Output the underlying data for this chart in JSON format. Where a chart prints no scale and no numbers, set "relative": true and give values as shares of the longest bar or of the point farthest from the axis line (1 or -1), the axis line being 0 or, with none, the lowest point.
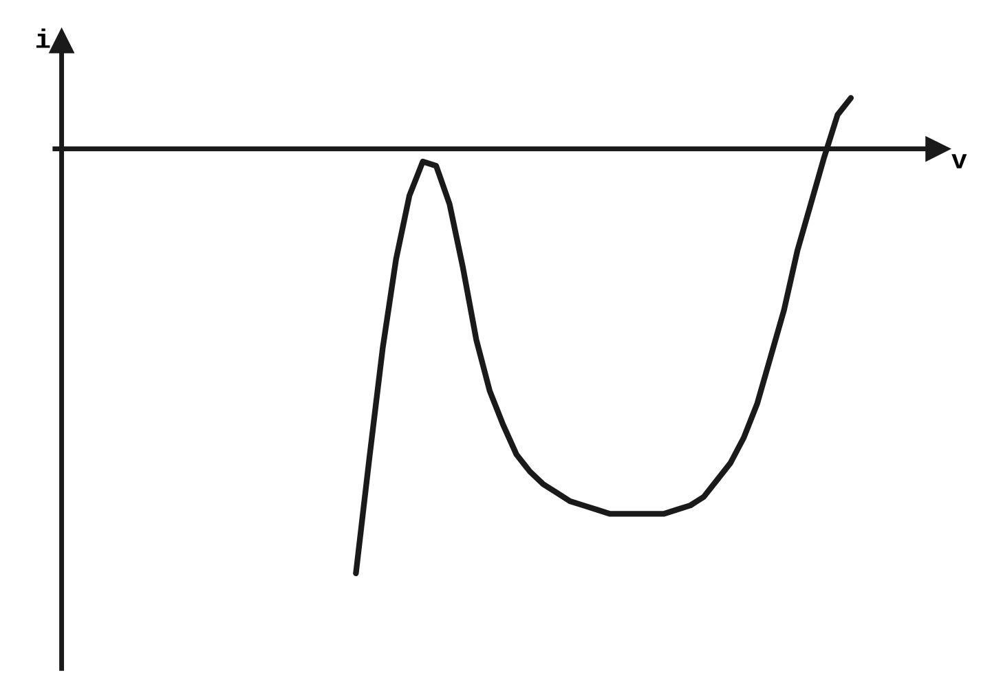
{
  "chart_data": {
    "type": "line",
    "relative": true,
    "xlabel": "v",
    "ylabel": "i",
    "legend": false,
    "marker": "none",
    "line_style": "solid",
    "categories": [
      null,
      null,
      null,
      null,
      null,
      null,
      null,
      null,
      null,
      null,
      null,
      null,
      null,
      null,
      null,
      null,
      null,
      null,
      null,
      null,
      null,
      null,
      null,
      null,
      null,
      null,
      null,
      null,
      null,
      null,
      null,
      null,
      null,
      null,
      null,
      null,
      null,
      null,
      null,
      null,
      null,
      null,
      null,
      null,
      null,
      null,
      null,
      null,
      null,
      null,
      null,
      null,
      null,
      null,
      null,
      null,
      null,
      null,
      null,
      null,
      null,
      null,
      null,
      null,
      null
    ],
    "series": [
      {
        "color": "#1a1a1a",
        "values": [
          null,
          null,
          null,
          null,
          null,
          null,
          null,
          null,
          null,
          null,
          null,
          null,
          null,
          null,
          null,
          null,
          null,
          null,
          null,
          null,
          null,
          null,
          -1.0,
          -0.73,
          -0.47,
          -0.26,
          -0.11,
          -0.03,
          -0.04,
          -0.13,
          -0.28,
          -0.45,
          -0.57,
          -0.65,
          -0.72,
          -0.76,
          -0.79,
          -0.81,
          -0.83,
          -0.84,
          -0.85,
          -0.86,
          -0.86,
          -0.86,
          -0.86,
          -0.86,
          -0.85,
          -0.84,
          -0.82,
          -0.78,
          -0.74,
          -0.68,
          -0.6,
          -0.49,
          -0.38,
          -0.24,
          -0.13,
          -0.02,
          0.08,
          0.12,
          null,
          null,
          null,
          null,
          null
        ]
      }
    ]
  }
}
